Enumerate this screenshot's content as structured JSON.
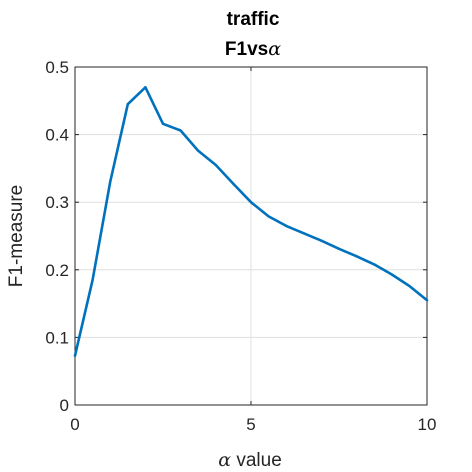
{
  "chart_data": {
    "type": "line",
    "title": "traffic",
    "subtitle_prefix": "F1vs",
    "subtitle_symbol": "α",
    "xlabel_symbol": "α",
    "xlabel_suffix": " value",
    "ylabel": "F1-measure",
    "xlim": [
      0,
      10
    ],
    "ylim": [
      0,
      0.5
    ],
    "xticks": [
      0,
      5,
      10
    ],
    "yticks": [
      0,
      0.1,
      0.2,
      0.3,
      0.4,
      0.5
    ],
    "xtick_labels": [
      "0",
      "5",
      "10"
    ],
    "ytick_labels": [
      "0",
      "0.1",
      "0.2",
      "0.3",
      "0.4",
      "0.5"
    ],
    "grid": true,
    "color": "#0072bd",
    "series": [
      {
        "x": [
          0,
          0.5,
          1,
          1.5,
          2,
          2.5,
          3,
          3.5,
          4,
          4.5,
          5,
          5.5,
          6,
          6.5,
          7,
          7.5,
          8,
          8.5,
          9,
          9.5,
          10
        ],
        "y": [
          0.073,
          0.185,
          0.33,
          0.445,
          0.47,
          0.416,
          0.406,
          0.376,
          0.355,
          0.327,
          0.3,
          0.279,
          0.265,
          0.254,
          0.243,
          0.231,
          0.22,
          0.208,
          0.193,
          0.176,
          0.155
        ]
      }
    ]
  }
}
